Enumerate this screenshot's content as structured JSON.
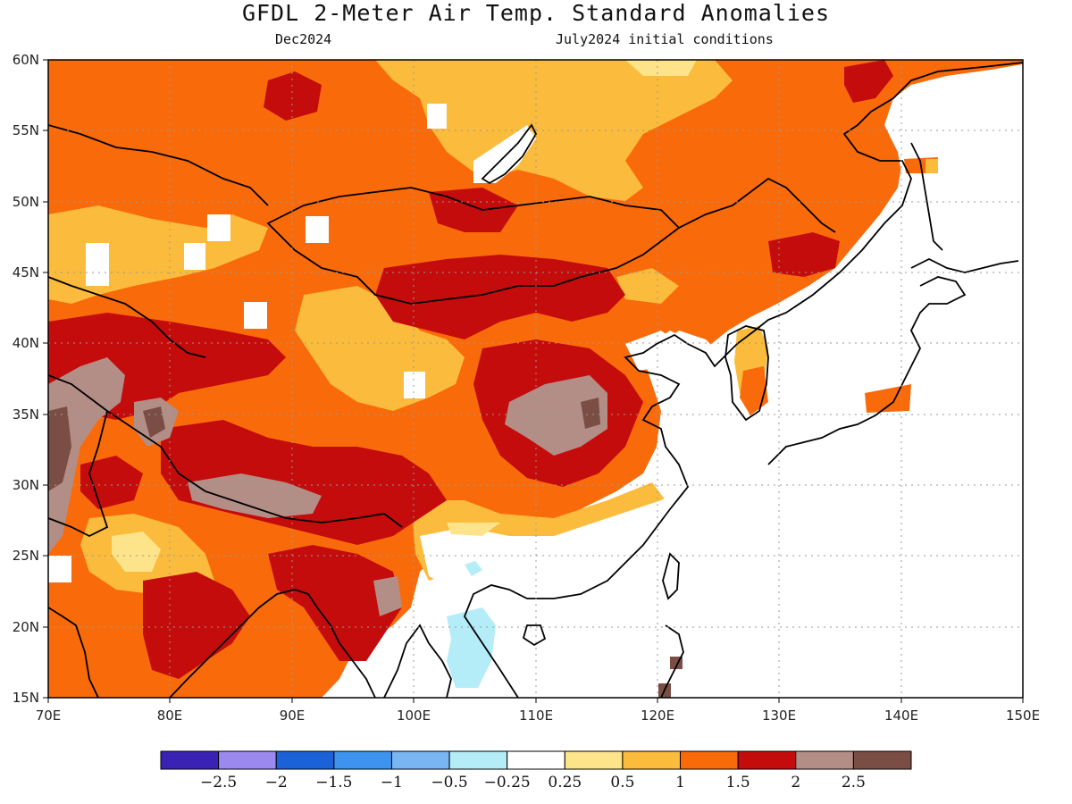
{
  "header": {
    "title": "GFDL 2-Meter Air Temp. Standard Anomalies",
    "valid": "Dec2024",
    "init": "July2024 initial conditions"
  },
  "map": {
    "lon_range": [
      70,
      150
    ],
    "lat_range": [
      15,
      60
    ],
    "lon_ticks": [
      "70E",
      "80E",
      "90E",
      "100E",
      "110E",
      "120E",
      "130E",
      "140E",
      "150E"
    ],
    "lat_ticks": [
      "15N",
      "20N",
      "25N",
      "30N",
      "35N",
      "40N",
      "45N",
      "50N",
      "55N",
      "60N"
    ],
    "grid": "dotted"
  },
  "colorbar": {
    "colors": [
      "#3a22b5",
      "#9b89f0",
      "#1b62d8",
      "#3d93ee",
      "#78b5f2",
      "#b4ecf8",
      "#ffffff",
      "#fde48a",
      "#fbbb3c",
      "#f96a0a",
      "#c40c0c",
      "#b38e86",
      "#7a4e44"
    ],
    "labels": [
      "−2.5",
      "−2",
      "−1.5",
      "−1",
      "−0.5",
      "−0.25",
      "0.25",
      "0.5",
      "1",
      "1.5",
      "2",
      "2.5"
    ]
  },
  "colors": {
    "band_1_to_1_5": "#f96a0a",
    "band_0_5_to_1": "#fbbb3c",
    "band_0_25_to_0_5": "#fde48a",
    "band_1_5_to_2": "#c40c0c",
    "band_2_to_2_5": "#b38e86",
    "band_gt_2_5": "#7a4e44",
    "band_neg_0_5": "#b4ecf8",
    "coastline": "#000000"
  }
}
